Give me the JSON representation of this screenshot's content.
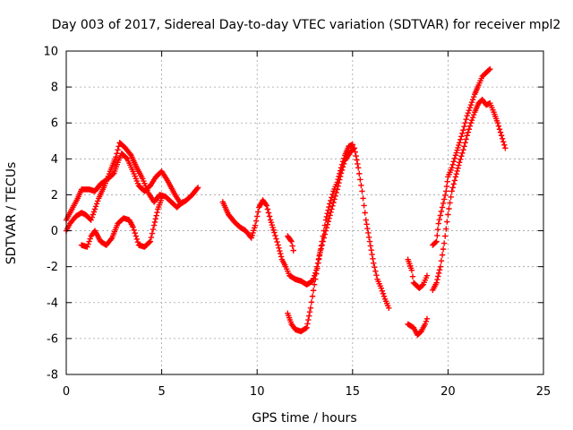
{
  "chart_data": {
    "type": "scatter",
    "title": "Day 003 of 2017, Sidereal Day-to-day VTEC variation (SDTVAR) for receiver mpl2",
    "xlabel": "GPS time / hours",
    "ylabel": "SDTVAR / TECUs",
    "xlim": [
      0,
      25
    ],
    "ylim": [
      -8,
      10
    ],
    "xticks": [
      0,
      5,
      10,
      15,
      20,
      25
    ],
    "yticks": [
      -8,
      -6,
      -4,
      -2,
      0,
      2,
      4,
      6,
      8,
      10
    ],
    "grid": true,
    "marker": "+",
    "colors": {
      "series": "#ff0000",
      "axis": "#000000",
      "grid": "#a0a0a0"
    },
    "series": [
      {
        "name": "trace-1",
        "points": [
          [
            0.0,
            0.6
          ],
          [
            0.3,
            1.2
          ],
          [
            0.6,
            1.8
          ],
          [
            0.8,
            2.3
          ],
          [
            1.2,
            2.3
          ],
          [
            1.5,
            2.2
          ],
          [
            1.8,
            2.6
          ],
          [
            2.2,
            2.9
          ],
          [
            2.5,
            3.2
          ],
          [
            2.7,
            3.8
          ],
          [
            2.9,
            4.3
          ],
          [
            3.2,
            4.0
          ],
          [
            3.5,
            3.3
          ],
          [
            3.8,
            2.5
          ],
          [
            4.1,
            2.2
          ],
          [
            4.4,
            2.5
          ],
          [
            4.7,
            3.0
          ],
          [
            5.0,
            3.3
          ],
          [
            5.3,
            2.8
          ],
          [
            5.7,
            2.0
          ],
          [
            6.0,
            1.5
          ],
          [
            6.3,
            1.7
          ],
          [
            6.6,
            2.0
          ],
          [
            6.9,
            2.4
          ]
        ]
      },
      {
        "name": "trace-2",
        "points": [
          [
            0.0,
            0.0
          ],
          [
            0.2,
            0.4
          ],
          [
            0.5,
            0.8
          ],
          [
            0.8,
            1.0
          ],
          [
            1.0,
            0.9
          ],
          [
            1.3,
            0.6
          ],
          [
            1.5,
            1.2
          ],
          [
            1.7,
            1.8
          ],
          [
            2.0,
            2.5
          ],
          [
            2.3,
            3.3
          ],
          [
            2.6,
            4.1
          ],
          [
            2.8,
            4.9
          ],
          [
            3.1,
            4.6
          ],
          [
            3.4,
            4.2
          ],
          [
            3.7,
            3.5
          ],
          [
            4.0,
            2.9
          ],
          [
            4.3,
            2.1
          ],
          [
            4.6,
            1.6
          ],
          [
            4.9,
            2.0
          ],
          [
            5.2,
            1.9
          ],
          [
            5.5,
            1.6
          ],
          [
            5.8,
            1.3
          ],
          [
            6.1,
            1.6
          ]
        ]
      },
      {
        "name": "trace-3",
        "points": [
          [
            0.8,
            -0.8
          ],
          [
            1.1,
            -0.9
          ],
          [
            1.3,
            -0.3
          ],
          [
            1.5,
            0.0
          ],
          [
            1.8,
            -0.6
          ],
          [
            2.1,
            -0.8
          ],
          [
            2.4,
            -0.4
          ],
          [
            2.7,
            0.4
          ],
          [
            3.0,
            0.7
          ],
          [
            3.3,
            0.6
          ],
          [
            3.5,
            0.2
          ],
          [
            3.8,
            -0.8
          ],
          [
            4.1,
            -0.9
          ],
          [
            4.4,
            -0.6
          ],
          [
            4.6,
            0.3
          ],
          [
            4.8,
            1.2
          ],
          [
            5.0,
            1.8
          ]
        ]
      },
      {
        "name": "trace-4",
        "points": [
          [
            8.2,
            1.6
          ],
          [
            8.5,
            0.9
          ],
          [
            8.8,
            0.5
          ],
          [
            9.1,
            0.2
          ],
          [
            9.4,
            0.0
          ],
          [
            9.7,
            -0.4
          ],
          [
            9.9,
            0.3
          ],
          [
            10.1,
            1.3
          ],
          [
            10.3,
            1.7
          ],
          [
            10.5,
            1.4
          ],
          [
            10.7,
            0.6
          ],
          [
            10.9,
            -0.1
          ],
          [
            11.1,
            -0.8
          ],
          [
            11.3,
            -1.6
          ],
          [
            11.5,
            -2.0
          ],
          [
            11.7,
            -2.5
          ],
          [
            12.0,
            -2.7
          ],
          [
            12.3,
            -2.8
          ],
          [
            12.6,
            -3.0
          ],
          [
            12.9,
            -2.8
          ],
          [
            13.1,
            -2.2
          ],
          [
            13.3,
            -1.2
          ],
          [
            13.6,
            0.0
          ],
          [
            13.9,
            1.2
          ],
          [
            14.2,
            2.3
          ],
          [
            14.4,
            3.2
          ],
          [
            14.6,
            3.9
          ],
          [
            14.9,
            4.4
          ],
          [
            15.1,
            4.6
          ],
          [
            15.3,
            3.5
          ],
          [
            15.5,
            2.2
          ],
          [
            15.7,
            0.6
          ],
          [
            15.9,
            -0.6
          ],
          [
            16.1,
            -1.8
          ],
          [
            16.3,
            -2.7
          ],
          [
            16.5,
            -3.2
          ],
          [
            16.7,
            -3.8
          ],
          [
            16.9,
            -4.3
          ]
        ]
      },
      {
        "name": "trace-5",
        "points": [
          [
            11.6,
            -4.6
          ],
          [
            11.8,
            -5.2
          ],
          [
            12.0,
            -5.5
          ],
          [
            12.3,
            -5.6
          ],
          [
            12.6,
            -5.4
          ],
          [
            12.8,
            -4.3
          ],
          [
            13.0,
            -3.0
          ],
          [
            13.2,
            -1.8
          ],
          [
            13.4,
            -0.6
          ],
          [
            13.6,
            0.6
          ],
          [
            13.8,
            1.5
          ],
          [
            14.0,
            2.2
          ],
          [
            14.2,
            2.7
          ],
          [
            14.4,
            3.5
          ],
          [
            14.6,
            4.2
          ],
          [
            14.8,
            4.7
          ],
          [
            15.0,
            4.8
          ]
        ]
      },
      {
        "name": "trace-6",
        "points": [
          [
            11.6,
            -0.3
          ],
          [
            11.8,
            -0.6
          ],
          [
            11.9,
            -1.1
          ]
        ]
      },
      {
        "name": "trace-7",
        "points": [
          [
            17.9,
            -1.6
          ],
          [
            18.1,
            -2.2
          ],
          [
            18.2,
            -2.9
          ],
          [
            18.5,
            -3.2
          ],
          [
            18.7,
            -3.0
          ],
          [
            18.9,
            -2.5
          ]
        ]
      },
      {
        "name": "trace-8",
        "points": [
          [
            17.9,
            -5.2
          ],
          [
            18.2,
            -5.4
          ],
          [
            18.4,
            -5.8
          ],
          [
            18.6,
            -5.6
          ],
          [
            18.8,
            -5.2
          ],
          [
            18.9,
            -4.9
          ]
        ]
      },
      {
        "name": "trace-9",
        "points": [
          [
            19.2,
            -0.8
          ],
          [
            19.4,
            -0.6
          ],
          [
            19.5,
            0.4
          ],
          [
            19.7,
            1.3
          ],
          [
            19.9,
            2.2
          ],
          [
            20.0,
            3.0
          ],
          [
            20.2,
            3.5
          ],
          [
            20.4,
            4.2
          ],
          [
            20.6,
            4.9
          ],
          [
            20.8,
            5.6
          ],
          [
            21.0,
            6.4
          ],
          [
            21.2,
            7.0
          ],
          [
            21.4,
            7.6
          ],
          [
            21.6,
            8.1
          ],
          [
            21.8,
            8.6
          ],
          [
            22.0,
            8.8
          ],
          [
            22.2,
            9.0
          ]
        ]
      },
      {
        "name": "trace-10",
        "points": [
          [
            19.2,
            -3.3
          ],
          [
            19.4,
            -2.9
          ],
          [
            19.6,
            -2.0
          ],
          [
            19.8,
            -0.7
          ],
          [
            20.0,
            0.9
          ],
          [
            20.2,
            2.2
          ],
          [
            20.4,
            3.0
          ],
          [
            20.6,
            3.8
          ],
          [
            20.8,
            4.5
          ],
          [
            21.0,
            5.3
          ],
          [
            21.2,
            6.0
          ],
          [
            21.4,
            6.6
          ],
          [
            21.6,
            7.1
          ],
          [
            21.8,
            7.3
          ],
          [
            22.0,
            7.0
          ],
          [
            22.2,
            7.1
          ],
          [
            22.4,
            6.6
          ],
          [
            22.6,
            6.0
          ],
          [
            22.8,
            5.3
          ],
          [
            23.0,
            4.6
          ]
        ]
      }
    ]
  }
}
